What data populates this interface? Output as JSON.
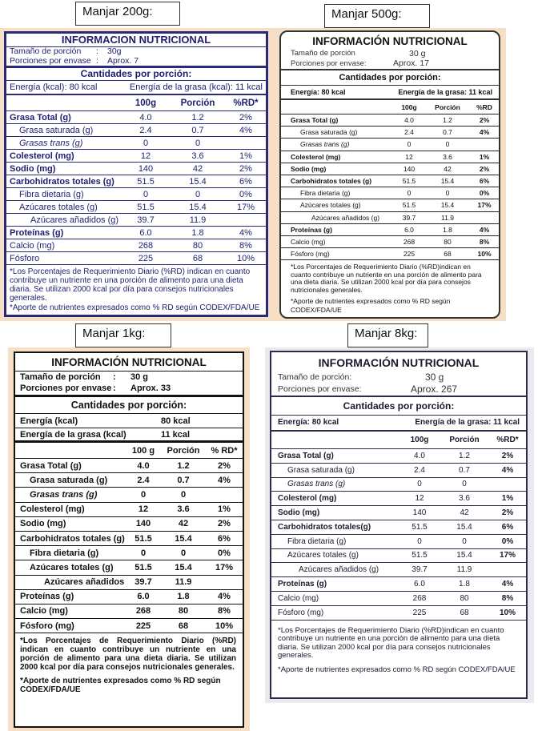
{
  "labels": {
    "p1": "Manjar 200g:",
    "p2": "Manjar 500g:",
    "p3": "Manjar 1kg:",
    "p4": "Manjar 8kg:"
  },
  "panels": [
    {
      "title": "INFORMACION NUTRICIONAL",
      "serving_label": "Tamaño de porción",
      "serving_value": "30g",
      "portions_label": "Porciones por envase",
      "portions_value": "Aprox. 7",
      "per_portion": "Cantidades por porción:",
      "energy": "Energía (kcal): 80 kcal",
      "fat_energy": "Energía de la grasa (kcal): 11 kcal",
      "col_100g": "100g",
      "col_portion": "Porción",
      "col_rd": "%RD*",
      "rows": [
        {
          "name": "Grasa Total (g)",
          "g": "4.0",
          "p": "1.2",
          "rd": "2%"
        },
        {
          "name": "Grasa saturada (g)",
          "g": "2.4",
          "p": "0.7",
          "rd": "4%"
        },
        {
          "name": "Grasas trans (g)",
          "g": "0",
          "p": "0",
          "rd": ""
        },
        {
          "name": "Colesterol (mg)",
          "g": "12",
          "p": "3.6",
          "rd": "1%"
        },
        {
          "name": "Sodio (mg)",
          "g": "140",
          "p": "42",
          "rd": "2%"
        },
        {
          "name": "Carbohidratos totales (g)",
          "g": "51.5",
          "p": "15.4",
          "rd": "6%"
        },
        {
          "name": "Fibra dietaria (g)",
          "g": "0",
          "p": "0",
          "rd": "0%"
        },
        {
          "name": "Azúcares totales (g)",
          "g": "51.5",
          "p": "15.4",
          "rd": "17%"
        },
        {
          "name": "Azúcares añadidos (g)",
          "g": "39.7",
          "p": "11.9",
          "rd": ""
        },
        {
          "name": "Proteínas (g)",
          "g": "6.0",
          "p": "1.8",
          "rd": "4%"
        },
        {
          "name": "Calcio (mg)",
          "g": "268",
          "p": "80",
          "rd": "8%"
        },
        {
          "name": "Fósforo",
          "g": "225",
          "p": "68",
          "rd": "10%"
        }
      ],
      "footnote": "*Los Porcentajes de Requerimiento Diario (%RD) indican en cuanto contribuye un nutriente en una porción de alimento para una dieta diaria. Se utilizan 2000 kcal por día para consejos nutricionales generales.",
      "footnote2": "*Aporte de nutrientes expresados como % RD según CODEX/FDA/UE"
    },
    {
      "title": "INFORMACIÓN NUTRICIONAL",
      "serving_label": "Tamaño de porción",
      "serving_value": "30 g",
      "portions_label": "Porciones por envase:",
      "portions_value": "Aprox. 17",
      "per_portion": "Cantidades por porción:",
      "energy": "Energía: 80 kcal",
      "fat_energy": "Energía de la grasa: 11 kcal",
      "col_100g": "100g",
      "col_portion": "Porción",
      "col_rd": "%RD",
      "rows": [
        {
          "name": "Grasa Total (g)",
          "g": "4.0",
          "p": "1.2",
          "rd": "2%"
        },
        {
          "name": "Grasa saturada (g)",
          "g": "2.4",
          "p": "0.7",
          "rd": "4%"
        },
        {
          "name": "Grasas trans (g)",
          "g": "0",
          "p": "0",
          "rd": ""
        },
        {
          "name": "Colesterol (mg)",
          "g": "12",
          "p": "3.6",
          "rd": "1%"
        },
        {
          "name": "Sodio (mg)",
          "g": "140",
          "p": "42",
          "rd": "2%"
        },
        {
          "name": "Carbohidratos totales (g)",
          "g": "51.5",
          "p": "15.4",
          "rd": "6%"
        },
        {
          "name": "Fibra dietaria (g)",
          "g": "0",
          "p": "0",
          "rd": "0%"
        },
        {
          "name": "Azúcares totales (g)",
          "g": "51.5",
          "p": "15.4",
          "rd": "17%"
        },
        {
          "name": "Azúcares añadidos (g)",
          "g": "39.7",
          "p": "11.9",
          "rd": ""
        },
        {
          "name": "Proteínas (g)",
          "g": "6.0",
          "p": "1.8",
          "rd": "4%"
        },
        {
          "name": "Calcio (mg)",
          "g": "268",
          "p": "80",
          "rd": "8%"
        },
        {
          "name": "Fósforo (mg)",
          "g": "225",
          "p": "68",
          "rd": "10%"
        }
      ],
      "footnote": "*Los Porcentajes de Requerimiento Diario (%RD)indican en cuanto contribuye un nutriente en una porción de alimento para una dieta diaria. Se utilizan 2000 kcal por día para consejos nutricionales generales.",
      "footnote2": "*Aporte de nutrientes expresados como % RD según CODEX/FDA/UE"
    },
    {
      "title": "INFORMACIÓN NUTRICIONAL",
      "serving_label": "Tamaño de porción",
      "serving_value": "30 g",
      "portions_label": "Porciones por envase",
      "portions_value": "Aprox. 33",
      "per_portion": "Cantidades por porción:",
      "energy_label": "Energía (kcal)",
      "energy_value": "80 kcal",
      "fat_energy_label": "Energía de la grasa (kcal)",
      "fat_energy_value": "11 kcal",
      "col_100g": "100 g",
      "col_portion": "Porción",
      "col_rd": "% RD*",
      "rows": [
        {
          "name": "Grasa Total (g)",
          "g": "4.0",
          "p": "1.2",
          "rd": "2%"
        },
        {
          "name": "Grasa saturada (g)",
          "g": "2.4",
          "p": "0.7",
          "rd": "4%"
        },
        {
          "name": "Grasas trans (g)",
          "g": "0",
          "p": "0",
          "rd": ""
        },
        {
          "name": "Colesterol (mg)",
          "g": "12",
          "p": "3.6",
          "rd": "1%"
        },
        {
          "name": "Sodio (mg)",
          "g": "140",
          "p": "42",
          "rd": "2%"
        },
        {
          "name": "Carbohidratos totales (g)",
          "g": "51.5",
          "p": "15.4",
          "rd": "6%"
        },
        {
          "name": "Fibra dietaria (g)",
          "g": "0",
          "p": "0",
          "rd": "0%"
        },
        {
          "name": "Azúcares totales (g)",
          "g": "51.5",
          "p": "15.4",
          "rd": "17%"
        },
        {
          "name": "Azúcares añadidos (g)",
          "g": "39.7",
          "p": "11.9",
          "rd": ""
        },
        {
          "name": "Proteínas (g)",
          "g": "6.0",
          "p": "1.8",
          "rd": "4%"
        },
        {
          "name": "Calcio (mg)",
          "g": "268",
          "p": "80",
          "rd": "8%"
        },
        {
          "name": "Fósforo (mg)",
          "g": "225",
          "p": "68",
          "rd": "10%"
        }
      ],
      "footnote": "*Los Porcentajes de Requerimiento Diario (%RD) indican en cuanto contribuye un nutriente en una porción de alimento para una dieta diaria. Se utilizan 2000 kcal por día para consejos nutricionales generales.",
      "footnote2": "*Aporte de nutrientes expresados como % RD según CODEX/FDA/UE"
    },
    {
      "title": "INFORMACIÓN NUTRICIONAL",
      "serving_label": "Tamaño de porción:",
      "serving_value": "30 g",
      "portions_label": "Porciones por envase:",
      "portions_value": "Aprox. 267",
      "per_portion": "Cantidades por porción:",
      "energy": "Energía: 80 kcal",
      "fat_energy": "Energía de la grasa: 11 kcal",
      "col_100g": "100g",
      "col_portion": "Porción",
      "col_rd": "%RD*",
      "rows": [
        {
          "name": "Grasa Total (g)",
          "g": "4.0",
          "p": "1.2",
          "rd": "2%"
        },
        {
          "name": "Grasa saturada (g)",
          "g": "2.4",
          "p": "0.7",
          "rd": "4%"
        },
        {
          "name": "Grasas trans (g)",
          "g": "0",
          "p": "0",
          "rd": ""
        },
        {
          "name": "Colesterol (mg)",
          "g": "12",
          "p": "3.6",
          "rd": "1%"
        },
        {
          "name": "Sodio (mg)",
          "g": "140",
          "p": "42",
          "rd": "2%"
        },
        {
          "name": "Carbohidratos totales(g)",
          "g": "51.5",
          "p": "15.4",
          "rd": "6%"
        },
        {
          "name": "Fibra dietaria (g)",
          "g": "0",
          "p": "0",
          "rd": "0%"
        },
        {
          "name": "Azúcares totales (g)",
          "g": "51.5",
          "p": "15.4",
          "rd": "17%"
        },
        {
          "name": "Azúcares añadidos (g)",
          "g": "39.7",
          "p": "11.9",
          "rd": ""
        },
        {
          "name": "Proteínas (g)",
          "g": "6.0",
          "p": "1.8",
          "rd": "4%"
        },
        {
          "name": "Calcio (mg)",
          "g": "268",
          "p": "80",
          "rd": "8%"
        },
        {
          "name": "Fósforo (mg)",
          "g": "225",
          "p": "68",
          "rd": "10%"
        }
      ],
      "footnote": "*Los Porcentajes de Requerimiento Diario (%RD)indican en cuanto contribuye un nutriente en una porción de alimento para una dieta diaria. Se utilizan 2000 kcal por día para consejos nutricionales generales.",
      "footnote2": "*Aporte de nutrientes expresados como % RD según CODEX/FDA/UE"
    }
  ],
  "colors": {
    "panel1_bg": "#f6dfc4",
    "panel1_border": "#2a2a7a",
    "panel2_bg": "#f6dfc4",
    "panel3_bg": "#f6dfc4",
    "panel4_bg": "#e9e9ee"
  }
}
